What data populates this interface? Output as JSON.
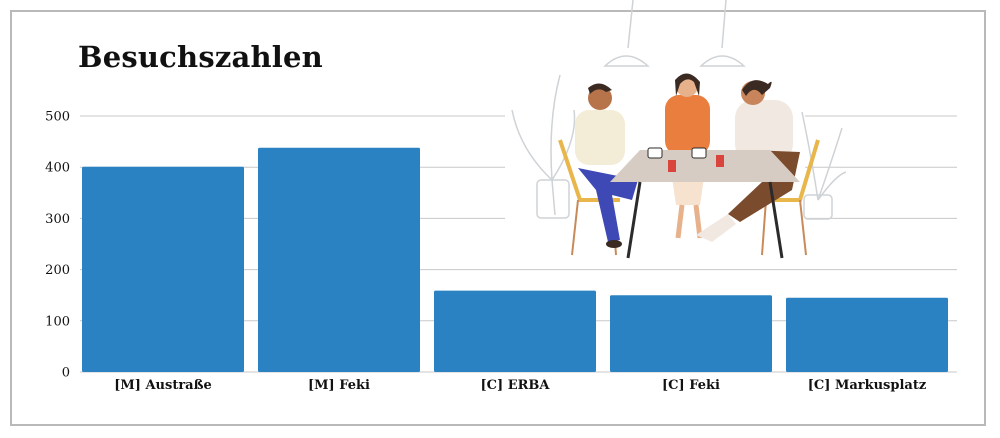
{
  "title": "Besuchszahlen",
  "chart_data": {
    "type": "bar",
    "title": "Besuchszahlen",
    "categories": [
      "[M] Austraße",
      "[M] Feki",
      "[C] ERBA",
      "[C] Feki",
      "[C] Markusplatz"
    ],
    "values": [
      401,
      438,
      159,
      150,
      145
    ],
    "ylim": [
      0,
      500
    ],
    "yticks": [
      0,
      100,
      200,
      300,
      400,
      500
    ],
    "grid": true,
    "bar_color": "#2a82c2",
    "grid_color": "#c8c8c8"
  },
  "illustration": {
    "icon": "people-eating-at-table-illustration"
  }
}
